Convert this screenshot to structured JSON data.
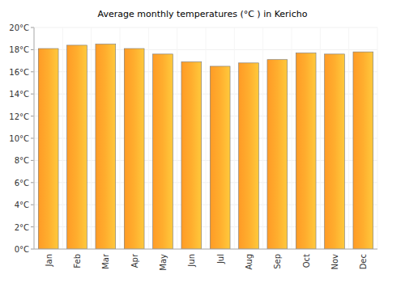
{
  "chart_data": {
    "type": "bar",
    "title": "Average monthly temperatures (°C ) in Kericho",
    "categories": [
      "Jan",
      "Feb",
      "Mar",
      "Apr",
      "May",
      "Jun",
      "Jul",
      "Aug",
      "Sep",
      "Oct",
      "Nov",
      "Dec"
    ],
    "values": [
      18.1,
      18.4,
      18.5,
      18.1,
      17.6,
      16.9,
      16.5,
      16.8,
      17.1,
      17.7,
      17.6,
      17.8
    ],
    "color": "#ffae2e",
    "ylim": [
      0,
      20
    ],
    "yticks": [
      {
        "value": 0,
        "label": "0°C"
      },
      {
        "value": 2,
        "label": "2°C"
      },
      {
        "value": 4,
        "label": "4°C"
      },
      {
        "value": 6,
        "label": "6°C"
      },
      {
        "value": 8,
        "label": "8°C"
      },
      {
        "value": 10,
        "label": "10°C"
      },
      {
        "value": 12,
        "label": "12°C"
      },
      {
        "value": 14,
        "label": "14°C"
      },
      {
        "value": 16,
        "label": "16°C"
      },
      {
        "value": 18,
        "label": "18°C"
      },
      {
        "value": 20,
        "label": "20°C"
      }
    ],
    "grid": true
  }
}
